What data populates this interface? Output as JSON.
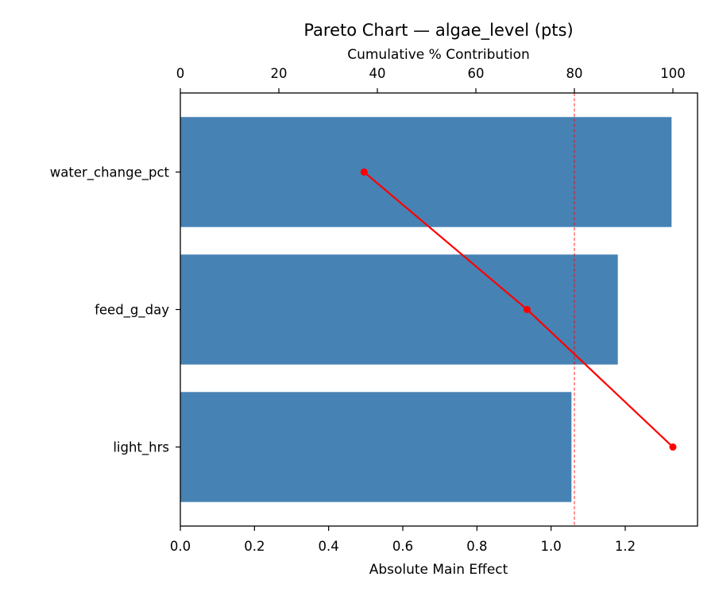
{
  "chart_data": {
    "type": "bar",
    "orientation": "horizontal",
    "title": "Pareto Chart — algae_level (pts)",
    "xlabel": "Absolute Main Effect",
    "x2label": "Cumulative % Contribution",
    "categories": [
      "water_change_pct",
      "feed_g_day",
      "light_hrs"
    ],
    "series": [
      {
        "type": "bar",
        "axis": "bottom",
        "values": [
          1.325,
          1.18,
          1.055
        ],
        "color": "#4682b4"
      },
      {
        "type": "line",
        "axis": "top",
        "values": [
          37.3,
          70.4,
          100.0
        ],
        "color": "#ff0000"
      }
    ],
    "xlim": [
      0.0,
      1.395
    ],
    "x2lim": [
      0,
      105
    ],
    "xticks": [
      "0.0",
      "0.2",
      "0.4",
      "0.6",
      "0.8",
      "1.0",
      "1.2"
    ],
    "x2ticks": [
      "0",
      "20",
      "40",
      "60",
      "80",
      "100"
    ],
    "reference_line": {
      "axis": "top",
      "value": 80,
      "style": "dashed",
      "color": "#ff0000"
    },
    "grid": false,
    "legend": "none"
  }
}
